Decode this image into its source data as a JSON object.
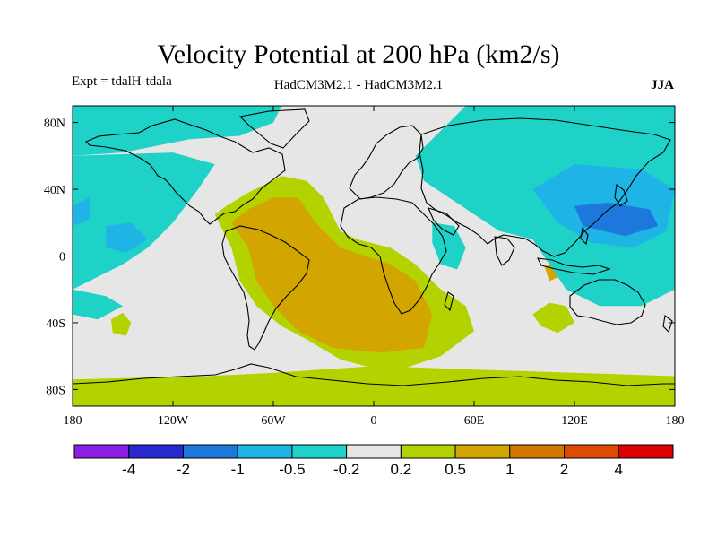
{
  "header": {
    "title": "Velocity Potential at 200 hPa (km2/s)",
    "experiment": "Expt = tdalH-tdala",
    "models": "HadCM3M2.1 - HadCM3M2.1",
    "season": "JJA"
  },
  "chart_data": {
    "type": "heatmap",
    "title": "Velocity Potential at 200 hPa (km2/s)",
    "variable": "velocity potential difference",
    "level": "200 hPa",
    "units": "km2/s",
    "season": "JJA",
    "xlabel": "",
    "ylabel": "",
    "xlim": [
      -180,
      180
    ],
    "ylim": [
      -90,
      90
    ],
    "x_ticks": [
      {
        "value": -180,
        "label": "180"
      },
      {
        "value": -120,
        "label": "120W"
      },
      {
        "value": -60,
        "label": "60W"
      },
      {
        "value": 0,
        "label": "0"
      },
      {
        "value": 60,
        "label": "60E"
      },
      {
        "value": 120,
        "label": "120E"
      },
      {
        "value": 180,
        "label": "180"
      }
    ],
    "y_ticks": [
      {
        "value": 80,
        "label": "80N"
      },
      {
        "value": 40,
        "label": "40N"
      },
      {
        "value": 0,
        "label": "0"
      },
      {
        "value": -40,
        "label": "40S"
      },
      {
        "value": -80,
        "label": "80S"
      }
    ],
    "colorbar": {
      "colors": [
        "#8c1ee6",
        "#2828d2",
        "#1e78dc",
        "#1eb4e6",
        "#1ed2c8",
        "#e6e6e6",
        "#b4d200",
        "#d2a500",
        "#d27800",
        "#dc4b00",
        "#dc0000"
      ],
      "labels": [
        "-4",
        "-2",
        "-1",
        "-0.5",
        "-0.2",
        "0.2",
        "0.5",
        "1",
        "2",
        "4"
      ]
    },
    "regions": [
      {
        "name": "positive-atlantic-africa",
        "class_index": 6,
        "lonlat": [
          [
            -95,
            25
          ],
          [
            -90,
            15
          ],
          [
            -85,
            5
          ],
          [
            -80,
            -15
          ],
          [
            -70,
            -30
          ],
          [
            -55,
            -42
          ],
          [
            -40,
            -50
          ],
          [
            -20,
            -62
          ],
          [
            10,
            -70
          ],
          [
            40,
            -60
          ],
          [
            60,
            -45
          ],
          [
            55,
            -30
          ],
          [
            40,
            -20
          ],
          [
            25,
            -5
          ],
          [
            10,
            5
          ],
          [
            -10,
            10
          ],
          [
            -20,
            15
          ],
          [
            -30,
            35
          ],
          [
            -40,
            45
          ],
          [
            -55,
            48
          ],
          [
            -75,
            38
          ],
          [
            -88,
            30
          ]
        ]
      },
      {
        "name": "positive-southern-ocean",
        "class_index": 6,
        "lonlat": [
          [
            -180,
            -74
          ],
          [
            -100,
            -72
          ],
          [
            -60,
            -70
          ],
          [
            0,
            -66
          ],
          [
            60,
            -68
          ],
          [
            120,
            -70
          ],
          [
            180,
            -72
          ],
          [
            180,
            -90
          ],
          [
            -180,
            -90
          ]
        ]
      },
      {
        "name": "positive-south-of-australia",
        "class_index": 6,
        "lonlat": [
          [
            95,
            -35
          ],
          [
            105,
            -28
          ],
          [
            115,
            -30
          ],
          [
            120,
            -40
          ],
          [
            110,
            -46
          ],
          [
            100,
            -42
          ]
        ]
      },
      {
        "name": "positive-south-pacific-blob",
        "class_index": 6,
        "lonlat": [
          [
            -157,
            -38
          ],
          [
            -150,
            -34
          ],
          [
            -145,
            -40
          ],
          [
            -148,
            -48
          ],
          [
            -156,
            -46
          ]
        ]
      },
      {
        "name": "strong-positive-core",
        "class_index": 7,
        "lonlat": [
          [
            -85,
            20
          ],
          [
            -75,
            5
          ],
          [
            -70,
            -15
          ],
          [
            -60,
            -30
          ],
          [
            -45,
            -45
          ],
          [
            -25,
            -55
          ],
          [
            5,
            -58
          ],
          [
            30,
            -55
          ],
          [
            35,
            -35
          ],
          [
            25,
            -15
          ],
          [
            10,
            -5
          ],
          [
            -5,
            0
          ],
          [
            -20,
            5
          ],
          [
            -35,
            20
          ],
          [
            -45,
            35
          ],
          [
            -60,
            35
          ],
          [
            -75,
            28
          ]
        ]
      },
      {
        "name": "strong-positive-indian",
        "class_index": 7,
        "lonlat": [
          [
            102,
            -6
          ],
          [
            110,
            -5
          ],
          [
            112,
            -12
          ],
          [
            105,
            -15
          ]
        ]
      },
      {
        "name": "negative-north-atlantic-pacific",
        "class_index": 4,
        "lonlat": [
          [
            -180,
            90
          ],
          [
            -55,
            90
          ],
          [
            -60,
            80
          ],
          [
            -80,
            72
          ],
          [
            -110,
            70
          ],
          [
            -150,
            62
          ],
          [
            -180,
            60
          ]
        ]
      },
      {
        "name": "negative-east-pacific",
        "class_index": 4,
        "lonlat": [
          [
            -180,
            60
          ],
          [
            -120,
            62
          ],
          [
            -95,
            55
          ],
          [
            -105,
            40
          ],
          [
            -120,
            20
          ],
          [
            -135,
            5
          ],
          [
            -150,
            -5
          ],
          [
            -170,
            -15
          ],
          [
            -180,
            -20
          ]
        ]
      },
      {
        "name": "negative-asia-pacific",
        "class_index": 4,
        "lonlat": [
          [
            55,
            90
          ],
          [
            180,
            90
          ],
          [
            180,
            -20
          ],
          [
            160,
            -30
          ],
          [
            135,
            -30
          ],
          [
            115,
            -20
          ],
          [
            105,
            -5
          ],
          [
            95,
            10
          ],
          [
            75,
            15
          ],
          [
            60,
            25
          ],
          [
            45,
            35
          ],
          [
            30,
            45
          ],
          [
            25,
            60
          ],
          [
            40,
            75
          ]
        ]
      },
      {
        "name": "negative-west-indian",
        "class_index": 4,
        "lonlat": [
          [
            35,
            20
          ],
          [
            48,
            18
          ],
          [
            55,
            5
          ],
          [
            50,
            -8
          ],
          [
            40,
            -5
          ],
          [
            35,
            8
          ]
        ]
      },
      {
        "name": "negative-south-pacific-blob",
        "class_index": 4,
        "lonlat": [
          [
            -180,
            -20
          ],
          [
            -160,
            -24
          ],
          [
            -150,
            -30
          ],
          [
            -165,
            -38
          ],
          [
            -180,
            -35
          ]
        ]
      },
      {
        "name": "moderate-negative-west-pacific",
        "class_index": 3,
        "lonlat": [
          [
            95,
            40
          ],
          [
            120,
            55
          ],
          [
            160,
            52
          ],
          [
            180,
            40
          ],
          [
            175,
            15
          ],
          [
            155,
            5
          ],
          [
            130,
            8
          ],
          [
            110,
            20
          ]
        ]
      },
      {
        "name": "moderate-negative-central-pacific",
        "class_index": 3,
        "lonlat": [
          [
            -160,
            18
          ],
          [
            -145,
            20
          ],
          [
            -135,
            10
          ],
          [
            -148,
            2
          ],
          [
            -160,
            5
          ]
        ]
      },
      {
        "name": "moderate-negative-dateline",
        "class_index": 3,
        "lonlat": [
          [
            -180,
            30
          ],
          [
            -170,
            35
          ],
          [
            -170,
            22
          ],
          [
            -180,
            18
          ]
        ]
      },
      {
        "name": "strong-negative-west-pacific",
        "class_index": 2,
        "lonlat": [
          [
            120,
            30
          ],
          [
            140,
            32
          ],
          [
            165,
            28
          ],
          [
            170,
            18
          ],
          [
            150,
            12
          ],
          [
            125,
            18
          ]
        ]
      }
    ]
  }
}
